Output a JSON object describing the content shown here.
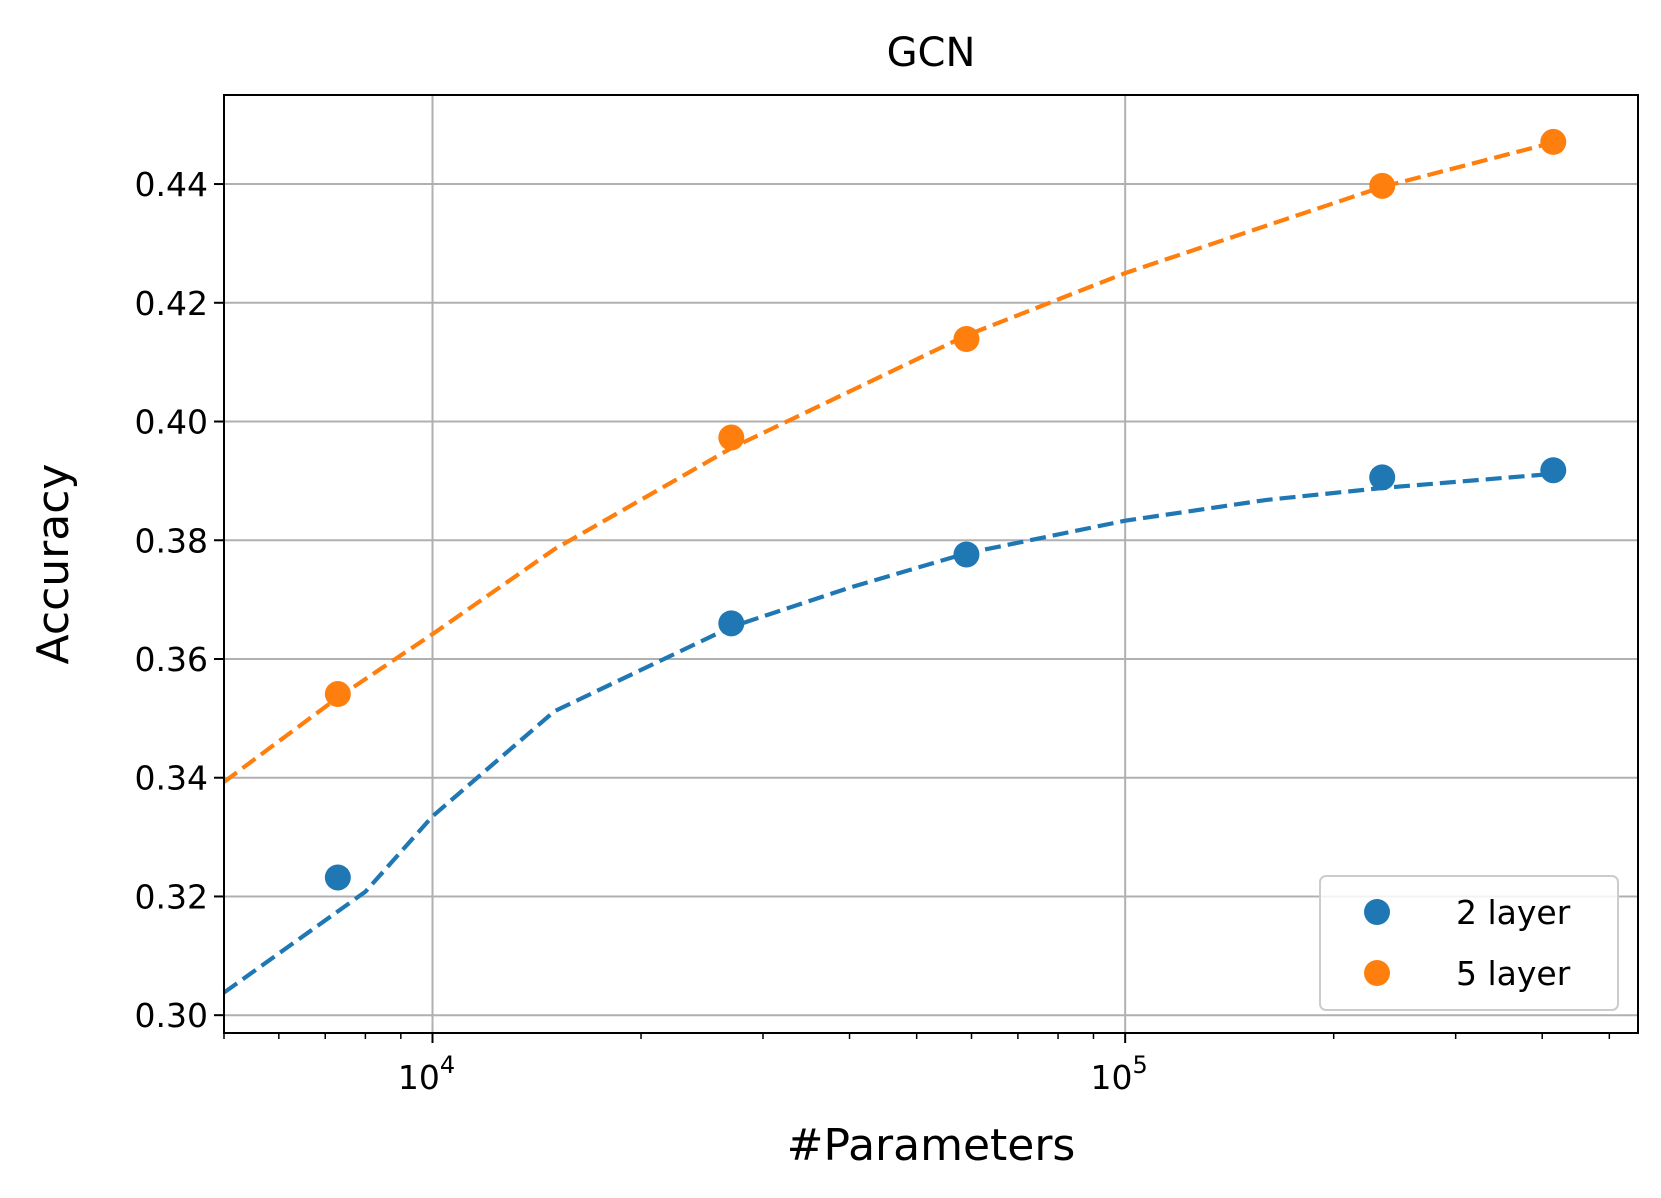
{
  "chart_data": {
    "type": "scatter",
    "title": "GCN",
    "xlabel": "#Parameters",
    "ylabel": "Accuracy",
    "xscale": "log",
    "xlim": [
      5000,
      550000
    ],
    "ylim": [
      0.297,
      0.455
    ],
    "x_ticks": [
      {
        "value": 10000,
        "base": "10",
        "exp": "4"
      },
      {
        "value": 100000,
        "base": "10",
        "exp": "5"
      }
    ],
    "y_ticks": [
      {
        "value": 0.3,
        "label": "0.30"
      },
      {
        "value": 0.32,
        "label": "0.32"
      },
      {
        "value": 0.34,
        "label": "0.34"
      },
      {
        "value": 0.36,
        "label": "0.36"
      },
      {
        "value": 0.38,
        "label": "0.38"
      },
      {
        "value": 0.4,
        "label": "0.40"
      },
      {
        "value": 0.42,
        "label": "0.42"
      },
      {
        "value": 0.44,
        "label": "0.44"
      }
    ],
    "grid": true,
    "legend_position": "bottom-right",
    "series": [
      {
        "name": "2 layer",
        "color": "#1f77b4",
        "points": [
          {
            "x": 7300,
            "y": 0.3232
          },
          {
            "x": 27000,
            "y": 0.366
          },
          {
            "x": 59000,
            "y": 0.3776
          },
          {
            "x": 235000,
            "y": 0.3906
          },
          {
            "x": 415000,
            "y": 0.3918
          }
        ],
        "fit": [
          {
            "x": 5000,
            "y": 0.3038
          },
          {
            "x": 8000,
            "y": 0.3208
          },
          {
            "x": 10000,
            "y": 0.3335
          },
          {
            "x": 15000,
            "y": 0.3512
          },
          {
            "x": 27000,
            "y": 0.3654
          },
          {
            "x": 40000,
            "y": 0.372
          },
          {
            "x": 59000,
            "y": 0.3778
          },
          {
            "x": 100000,
            "y": 0.3833
          },
          {
            "x": 160000,
            "y": 0.3868
          },
          {
            "x": 235000,
            "y": 0.3888
          },
          {
            "x": 415000,
            "y": 0.3912
          }
        ]
      },
      {
        "name": "5 layer",
        "color": "#ff7f0e",
        "points": [
          {
            "x": 7300,
            "y": 0.3541
          },
          {
            "x": 27000,
            "y": 0.3973
          },
          {
            "x": 59000,
            "y": 0.4139
          },
          {
            "x": 235000,
            "y": 0.4397
          },
          {
            "x": 415000,
            "y": 0.4471
          }
        ],
        "fit": [
          {
            "x": 5000,
            "y": 0.3393
          },
          {
            "x": 7300,
            "y": 0.3535
          },
          {
            "x": 10000,
            "y": 0.3642
          },
          {
            "x": 15000,
            "y": 0.3785
          },
          {
            "x": 27000,
            "y": 0.3955
          },
          {
            "x": 59000,
            "y": 0.4145
          },
          {
            "x": 100000,
            "y": 0.425
          },
          {
            "x": 160000,
            "y": 0.433
          },
          {
            "x": 235000,
            "y": 0.4395
          },
          {
            "x": 415000,
            "y": 0.447
          }
        ]
      }
    ]
  }
}
